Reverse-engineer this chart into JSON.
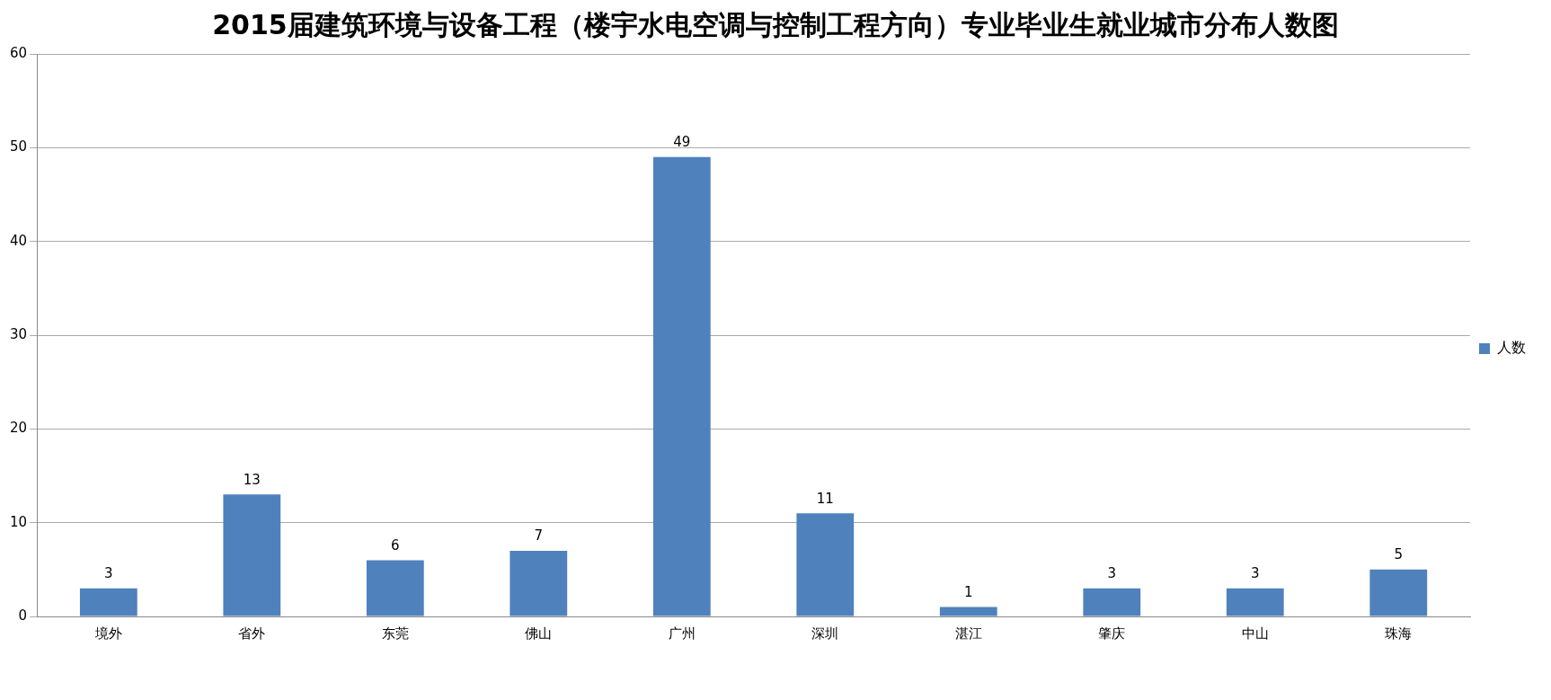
{
  "chart_data": {
    "type": "bar",
    "title": "2015届建筑环境与设备工程（楼宇水电空调与控制工程方向）专业毕业生就业城市分布人数图",
    "categories": [
      "境外",
      "省外",
      "东莞",
      "佛山",
      "广州",
      "深圳",
      "湛江",
      "肇庆",
      "中山",
      "珠海"
    ],
    "series": [
      {
        "name": "人数",
        "color": "#4f81bd",
        "values": [
          3,
          13,
          6,
          7,
          49,
          11,
          1,
          3,
          3,
          5
        ]
      }
    ],
    "ylim": [
      0,
      60
    ],
    "yticks": [
      0,
      10,
      20,
      30,
      40,
      50,
      60
    ],
    "grid": "y",
    "legend": "right",
    "data_labels": true
  }
}
